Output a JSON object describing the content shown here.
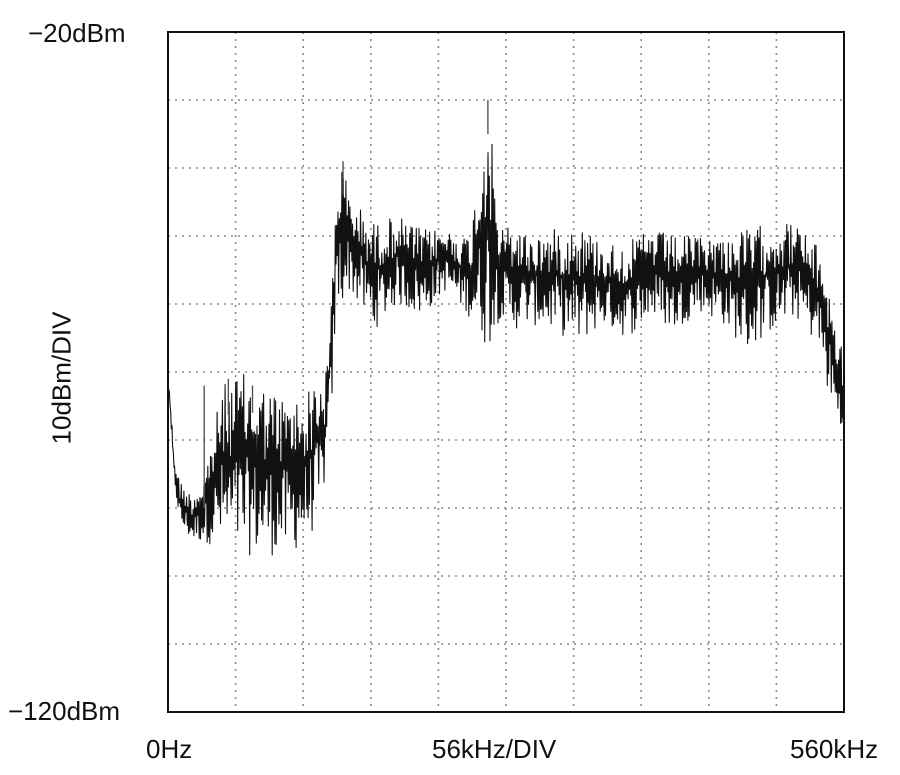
{
  "chart_data": {
    "type": "line",
    "title": "",
    "xlabel": "56kHz/DIV",
    "ylabel": "10dBm/DIV",
    "x_unit": "kHz",
    "y_unit": "dBm",
    "xlim": [
      0,
      560
    ],
    "ylim": [
      -120,
      -20
    ],
    "x_tick_labels": [
      "0Hz",
      "560kHz"
    ],
    "y_tick_labels": [
      "-20dBm",
      "-120dBm"
    ],
    "y_tick_labels_display": {
      "top": "−20dBm",
      "bottom": "−120dBm"
    },
    "grid": true,
    "grid_style": "dotted",
    "x_divisions": 10,
    "y_divisions": 10,
    "series": [
      {
        "color": "#111111",
        "envelope": {
          "x": [
            0,
            5,
            10,
            20,
            30,
            45,
            60,
            80,
            100,
            115,
            125,
            130,
            135,
            140,
            145,
            150,
            170,
            190,
            210,
            230,
            250,
            265,
            275,
            285,
            300,
            320,
            340,
            360,
            380,
            400,
            420,
            440,
            460,
            480,
            500,
            520,
            530,
            540,
            545,
            550,
            555,
            560
          ],
          "upper": [
            -69,
            -82,
            -86,
            -88,
            -85,
            -72,
            -70,
            -72,
            -74,
            -73,
            -70,
            -72,
            -60,
            -40,
            -39,
            -44,
            -48,
            -47,
            -49,
            -49,
            -50,
            -30,
            -49,
            -48,
            -50,
            -49,
            -48,
            -51,
            -51,
            -49,
            -50,
            -50,
            -50,
            -49,
            -48,
            -48,
            -50,
            -52,
            -55,
            -60,
            -64,
            -67
          ],
          "lower": [
            -72,
            -86,
            -93,
            -95,
            -95,
            -96,
            -97,
            -97,
            -97,
            -95,
            -92,
            -86,
            -77,
            -61,
            -60,
            -58,
            -64,
            -60,
            -62,
            -58,
            -62,
            -67,
            -62,
            -64,
            -63,
            -64,
            -66,
            -63,
            -65,
            -62,
            -64,
            -61,
            -63,
            -67,
            -64,
            -62,
            -64,
            -67,
            -72,
            -75,
            -79,
            -81
          ]
        },
        "spikes": [
          {
            "x": 265,
            "y": -30
          },
          {
            "x": 145,
            "y": -39
          },
          {
            "x": 30,
            "y": -72
          },
          {
            "x": 50,
            "y": -71
          },
          {
            "x": 70,
            "y": -72
          }
        ]
      }
    ]
  },
  "labels": {
    "y_top": "−20dBm",
    "y_bottom": "−120dBm",
    "x_left": "0Hz",
    "x_mid": "56kHz/DIV",
    "x_right": "560kHz",
    "y_axis": "10dBm/DIV"
  }
}
